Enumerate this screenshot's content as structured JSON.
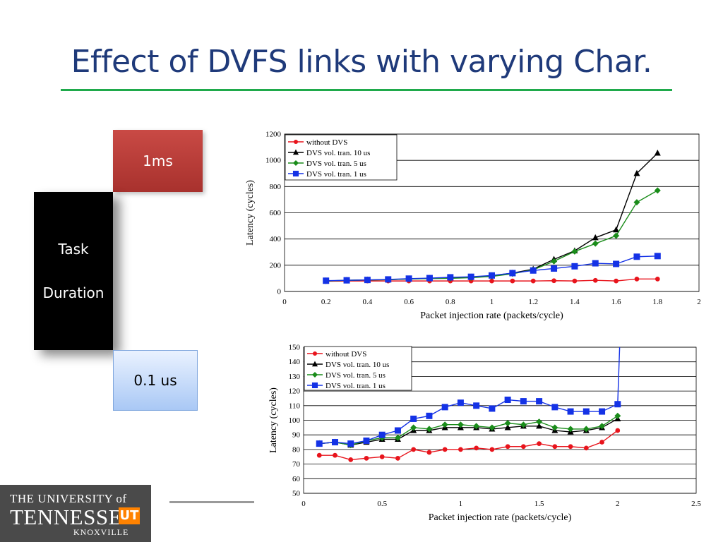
{
  "slide": {
    "title": "Effect of DVFS links with varying Char.",
    "box_top": "1ms",
    "box_middle_line1": "Task",
    "box_middle_line2": "Duration",
    "box_bottom": "0.1 us"
  },
  "logo": {
    "line1": "THE UNIVERSITY of",
    "line2": "TENNESSEE",
    "mark": "UT",
    "line3": "KNOXVILLE"
  },
  "chart_data": [
    {
      "type": "line",
      "xlabel": "Packet injection rate (packets/cycle)",
      "ylabel": "Latency (cycles)",
      "xlim": [
        0,
        2
      ],
      "ylim": [
        0,
        1200
      ],
      "xticks": [
        0,
        0.2,
        0.4,
        0.6,
        0.8,
        1,
        1.2,
        1.4,
        1.6,
        1.8,
        2
      ],
      "yticks": [
        0,
        200,
        400,
        600,
        800,
        1000,
        1200
      ],
      "grid": "horizontal",
      "legend_position": "top-left",
      "x": [
        0.2,
        0.3,
        0.4,
        0.5,
        0.6,
        0.7,
        0.8,
        0.9,
        1.0,
        1.1,
        1.2,
        1.3,
        1.4,
        1.5,
        1.6,
        1.7,
        1.8
      ],
      "series": [
        {
          "name": "without DVS",
          "color": "#e8141c",
          "marker": "circle",
          "values": [
            78,
            80,
            80,
            80,
            80,
            80,
            80,
            80,
            80,
            80,
            80,
            82,
            80,
            85,
            80,
            95,
            95
          ]
        },
        {
          "name": "DVS vol. tran. 10 us",
          "color": "#000000",
          "marker": "triangle",
          "values": [
            80,
            85,
            88,
            90,
            95,
            100,
            105,
            110,
            120,
            140,
            170,
            245,
            310,
            410,
            470,
            900,
            1055
          ]
        },
        {
          "name": "DVS vol. tran. 5 us",
          "color": "#1a8c1a",
          "marker": "diamond",
          "values": [
            80,
            85,
            88,
            90,
            95,
            98,
            100,
            105,
            115,
            135,
            165,
            230,
            305,
            365,
            425,
            680,
            770
          ]
        },
        {
          "name": "DVS vol. tran. 1 us",
          "color": "#1432e6",
          "marker": "square",
          "values": [
            82,
            85,
            88,
            92,
            98,
            102,
            108,
            112,
            122,
            140,
            160,
            175,
            192,
            215,
            210,
            265,
            270
          ]
        }
      ]
    },
    {
      "type": "line",
      "xlabel": "Packet injection rate (packets/cycle)",
      "ylabel": "Latency (cycles)",
      "xlim": [
        0,
        2.5
      ],
      "ylim": [
        50,
        150
      ],
      "xticks": [
        0,
        0.5,
        1,
        1.5,
        2,
        2.5
      ],
      "yticks": [
        50,
        60,
        70,
        80,
        90,
        100,
        110,
        120,
        130,
        140,
        150
      ],
      "grid": "horizontal",
      "legend_position": "top-left",
      "x": [
        0.1,
        0.2,
        0.3,
        0.4,
        0.5,
        0.6,
        0.7,
        0.8,
        0.9,
        1.0,
        1.1,
        1.2,
        1.3,
        1.4,
        1.5,
        1.6,
        1.7,
        1.8,
        1.9,
        2.0
      ],
      "series": [
        {
          "name": "without DVS",
          "color": "#e8141c",
          "marker": "circle",
          "values": [
            76,
            76,
            73,
            74,
            75,
            74,
            80,
            78,
            80,
            80,
            81,
            80,
            82,
            82,
            84,
            82,
            82,
            81,
            85,
            93
          ]
        },
        {
          "name": "DVS vol. tran. 10 us",
          "color": "#000000",
          "marker": "triangle",
          "values": [
            84,
            85,
            83,
            85,
            87,
            87,
            93,
            93,
            95,
            95,
            95,
            94,
            95,
            96,
            96,
            93,
            92,
            93,
            95,
            101
          ]
        },
        {
          "name": "DVS vol. tran. 5 us",
          "color": "#1a8c1a",
          "marker": "diamond",
          "values": [
            84,
            85,
            83,
            86,
            88,
            88,
            95,
            94,
            97,
            97,
            96,
            95,
            98,
            97,
            99,
            95,
            94,
            94,
            96,
            103
          ]
        },
        {
          "name": "DVS vol. tran. 1 us",
          "color": "#1432e6",
          "marker": "square",
          "values": [
            84,
            85,
            84,
            86,
            90,
            93,
            101,
            103,
            109,
            112,
            110,
            108,
            114,
            113,
            113,
            109,
            106,
            106,
            106,
            111
          ]
        }
      ],
      "note_spike_at_x": 2.0
    }
  ]
}
